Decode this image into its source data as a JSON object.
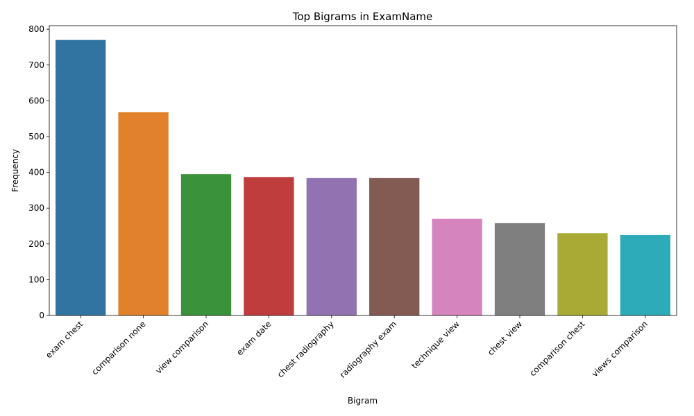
{
  "chart_data": {
    "type": "bar",
    "title": "Top Bigrams in ExamName",
    "xlabel": "Bigram",
    "ylabel": "Frequency",
    "ylim": [
      0,
      810
    ],
    "yticks": [
      0,
      100,
      200,
      300,
      400,
      500,
      600,
      700,
      800
    ],
    "categories": [
      "exam chest",
      "comparison none",
      "view comparison",
      "exam date",
      "chest radiography",
      "radiography exam",
      "technique view",
      "chest view",
      "comparison chest",
      "views comparison"
    ],
    "values": [
      770,
      568,
      395,
      387,
      384,
      384,
      270,
      258,
      230,
      225
    ],
    "colors": [
      "#3274a1",
      "#e1812c",
      "#3a923a",
      "#c03d3e",
      "#9372b2",
      "#845b53",
      "#d684bd",
      "#7f7f7f",
      "#a9aa35",
      "#2eabb8"
    ],
    "grid": false,
    "legend": "none"
  }
}
